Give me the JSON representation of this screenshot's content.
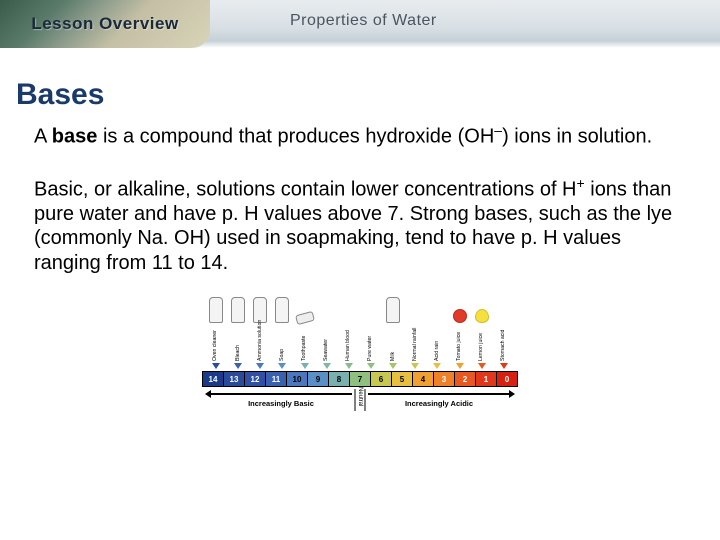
{
  "header": {
    "left_label": "Lesson Overview",
    "title": "Properties of Water"
  },
  "section": {
    "title": "Bases",
    "para1_prefix": "A ",
    "para1_bold": "base",
    "para1_rest": " is a compound that produces hydroxide (OH",
    "para1_sup": "–",
    "para1_end": ") ions in solution.",
    "para2_a": "Basic, or alkaline, solutions contain lower concentrations of H",
    "para2_sup": "+",
    "para2_b": " ions than pure water and have p. H values above 7. Strong bases, such as the lye (commonly Na. OH) used in soapmaking, tend to have p. H values ranging from 11 to 14."
  },
  "ph": {
    "numbers": [
      "14",
      "13",
      "12",
      "11",
      "10",
      "9",
      "8",
      "7",
      "6",
      "5",
      "4",
      "3",
      "2",
      "1",
      "0"
    ],
    "colors": [
      "#1a3a8a",
      "#2a4a9a",
      "#3050a5",
      "#3a60b0",
      "#4a78c0",
      "#5a90c8",
      "#78b0b0",
      "#90c080",
      "#c8c850",
      "#e8c040",
      "#f0a030",
      "#f08028",
      "#e85820",
      "#e03818",
      "#d82010"
    ],
    "items": [
      {
        "label": "Oven cleaner",
        "shape": "bottle",
        "tri": "#2a4a9a"
      },
      {
        "label": "Bleach",
        "shape": "bottle",
        "tri": "#3a60b0"
      },
      {
        "label": "Ammonia solution",
        "shape": "bottle",
        "tri": "#4a78c0"
      },
      {
        "label": "Soap",
        "shape": "bottle",
        "tri": "#5a90c8"
      },
      {
        "label": "Toothpaste",
        "shape": "tube",
        "tri": "#78b0b0"
      },
      {
        "label": "Seawater",
        "shape": "",
        "tri": "#80b8a0"
      },
      {
        "label": "Human blood",
        "shape": "",
        "tri": "#88bc90"
      },
      {
        "label": "Pure water",
        "shape": "",
        "tri": "#90c080"
      },
      {
        "label": "Milk",
        "shape": "bottle",
        "tri": "#a8c468"
      },
      {
        "label": "Normal rainfall",
        "shape": "",
        "tri": "#c8c850"
      },
      {
        "label": "Acid rain",
        "shape": "",
        "tri": "#e8c040"
      },
      {
        "label": "Tomato juice",
        "shape": "round",
        "tri": "#f0a030"
      },
      {
        "label": "Lemon juice",
        "shape": "lemon",
        "tri": "#e85820"
      },
      {
        "label": "Stomach acid",
        "shape": "",
        "tri": "#e03818"
      }
    ],
    "basic_label": "Increasingly Basic",
    "acidic_label": "Increasingly Acidic",
    "neutral_label": "Neutral"
  }
}
